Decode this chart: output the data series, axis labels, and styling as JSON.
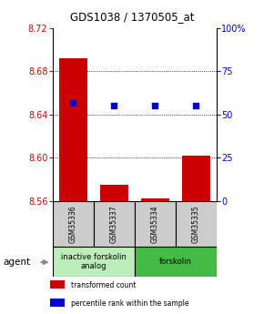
{
  "title": "GDS1038 / 1370505_at",
  "samples": [
    "GSM35336",
    "GSM35337",
    "GSM35334",
    "GSM35335"
  ],
  "bar_values": [
    8.692,
    8.575,
    8.562,
    8.602
  ],
  "dot_values_pct": [
    57,
    55,
    55,
    55
  ],
  "ylim": [
    8.56,
    8.72
  ],
  "y_ticks": [
    8.56,
    8.6,
    8.64,
    8.68,
    8.72
  ],
  "right_ylim": [
    0,
    100
  ],
  "right_yticks": [
    0,
    25,
    50,
    75,
    100
  ],
  "right_yticklabels": [
    "0",
    "25",
    "50",
    "75",
    "100%"
  ],
  "bar_color": "#cc0000",
  "dot_color": "#0000cc",
  "bar_bottom": 8.56,
  "groups": [
    {
      "label": "inactive forskolin\nanalog",
      "samples": [
        0,
        1
      ],
      "color": "#bbeebb"
    },
    {
      "label": "forskolin",
      "samples": [
        2,
        3
      ],
      "color": "#44bb44"
    }
  ],
  "legend_items": [
    {
      "color": "#cc0000",
      "label": "transformed count"
    },
    {
      "color": "#0000cc",
      "label": "percentile rank within the sample"
    }
  ],
  "agent_label": "agent",
  "grid_color": "#000000",
  "tick_label_color_left": "#cc0000",
  "tick_label_color_right": "#0000cc",
  "sample_box_color": "#cccccc",
  "figsize": [
    2.9,
    3.45
  ],
  "dpi": 100
}
